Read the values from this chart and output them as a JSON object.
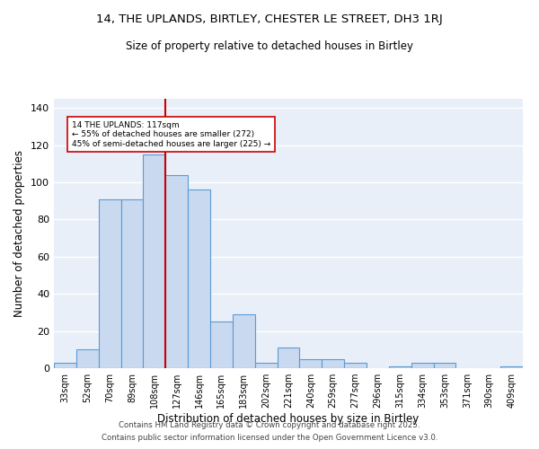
{
  "title1": "14, THE UPLANDS, BIRTLEY, CHESTER LE STREET, DH3 1RJ",
  "title2": "Size of property relative to detached houses in Birtley",
  "xlabel": "Distribution of detached houses by size in Birtley",
  "ylabel": "Number of detached properties",
  "categories": [
    "33sqm",
    "52sqm",
    "70sqm",
    "89sqm",
    "108sqm",
    "127sqm",
    "146sqm",
    "165sqm",
    "183sqm",
    "202sqm",
    "221sqm",
    "240sqm",
    "259sqm",
    "277sqm",
    "296sqm",
    "315sqm",
    "334sqm",
    "353sqm",
    "371sqm",
    "390sqm",
    "409sqm"
  ],
  "values": [
    3,
    10,
    91,
    91,
    115,
    104,
    96,
    25,
    29,
    3,
    11,
    5,
    5,
    3,
    0,
    1,
    3,
    3,
    0,
    0,
    1
  ],
  "bar_color": "#c9d9f0",
  "bar_edge_color": "#5b9bd5",
  "vline_color": "#cc0000",
  "vline_x": 4.5,
  "annotation_text": "14 THE UPLANDS: 117sqm\n← 55% of detached houses are smaller (272)\n45% of semi-detached houses are larger (225) →",
  "annotation_box_color": "white",
  "annotation_box_edge": "#cc0000",
  "ylim": [
    0,
    145
  ],
  "yticks": [
    0,
    20,
    40,
    60,
    80,
    100,
    120,
    140
  ],
  "bg_color": "#e8eff8",
  "grid_color": "white",
  "footer1": "Contains HM Land Registry data © Crown copyright and database right 2025.",
  "footer2": "Contains public sector information licensed under the Open Government Licence v3.0."
}
